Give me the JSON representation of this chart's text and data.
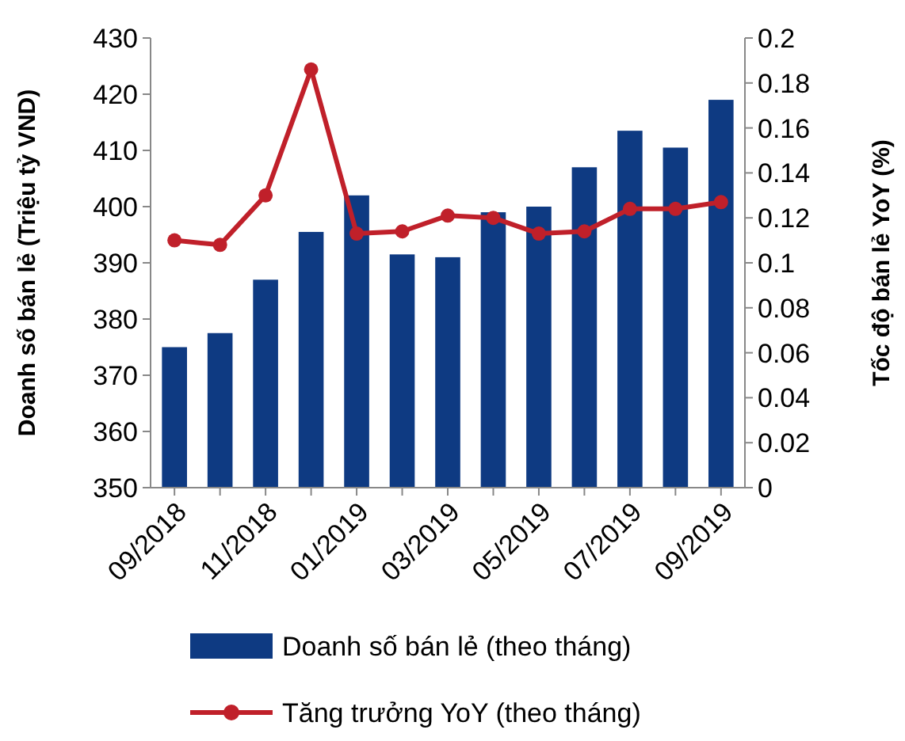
{
  "chart_data": {
    "type": "bar",
    "categories": [
      "09/2018",
      null,
      "11/2018",
      null,
      "01/2019",
      null,
      "03/2019",
      null,
      "05/2019",
      null,
      "07/2019",
      null,
      "09/2019"
    ],
    "series": [
      {
        "name": "Doanh số bán lẻ (theo tháng)",
        "color": "#0e3a82",
        "values": [
          375,
          377.5,
          387,
          395.5,
          402,
          391.5,
          391,
          399,
          400,
          407,
          413.5,
          410.5,
          419
        ]
      },
      {
        "name": "Tăng trưởng YoY (theo tháng)",
        "type": "line",
        "axis": "y2",
        "color": "#c0202a",
        "values": [
          0.11,
          0.108,
          0.13,
          0.186,
          0.113,
          0.114,
          0.121,
          0.12,
          0.113,
          0.114,
          0.124,
          0.124,
          0.127
        ]
      }
    ],
    "ylabel": "Doanh số bán lẻ (Triệu tỷ VND)",
    "y2label": "Tốc độ bán lẻ YoY (%)",
    "ylim": [
      350,
      430
    ],
    "yticks": [
      350,
      360,
      370,
      380,
      390,
      400,
      410,
      420,
      430
    ],
    "y2lim": [
      0,
      0.2
    ],
    "y2ticks": [
      {
        "value": 0,
        "label": "0"
      },
      {
        "value": 0.02,
        "label": "0.02"
      },
      {
        "value": 0.04,
        "label": "0.04"
      },
      {
        "value": 0.06,
        "label": "0.06"
      },
      {
        "value": 0.08,
        "label": "0.08"
      },
      {
        "value": 0.1,
        "label": "0.1"
      },
      {
        "value": 0.12,
        "label": "0.12"
      },
      {
        "value": 0.14,
        "label": "0.14"
      },
      {
        "value": 0.16,
        "label": "0.16"
      },
      {
        "value": 0.18,
        "label": "0.18"
      },
      {
        "value": 0.2,
        "label": "0.2"
      }
    ],
    "marker": "circle",
    "legend": "bottom"
  }
}
